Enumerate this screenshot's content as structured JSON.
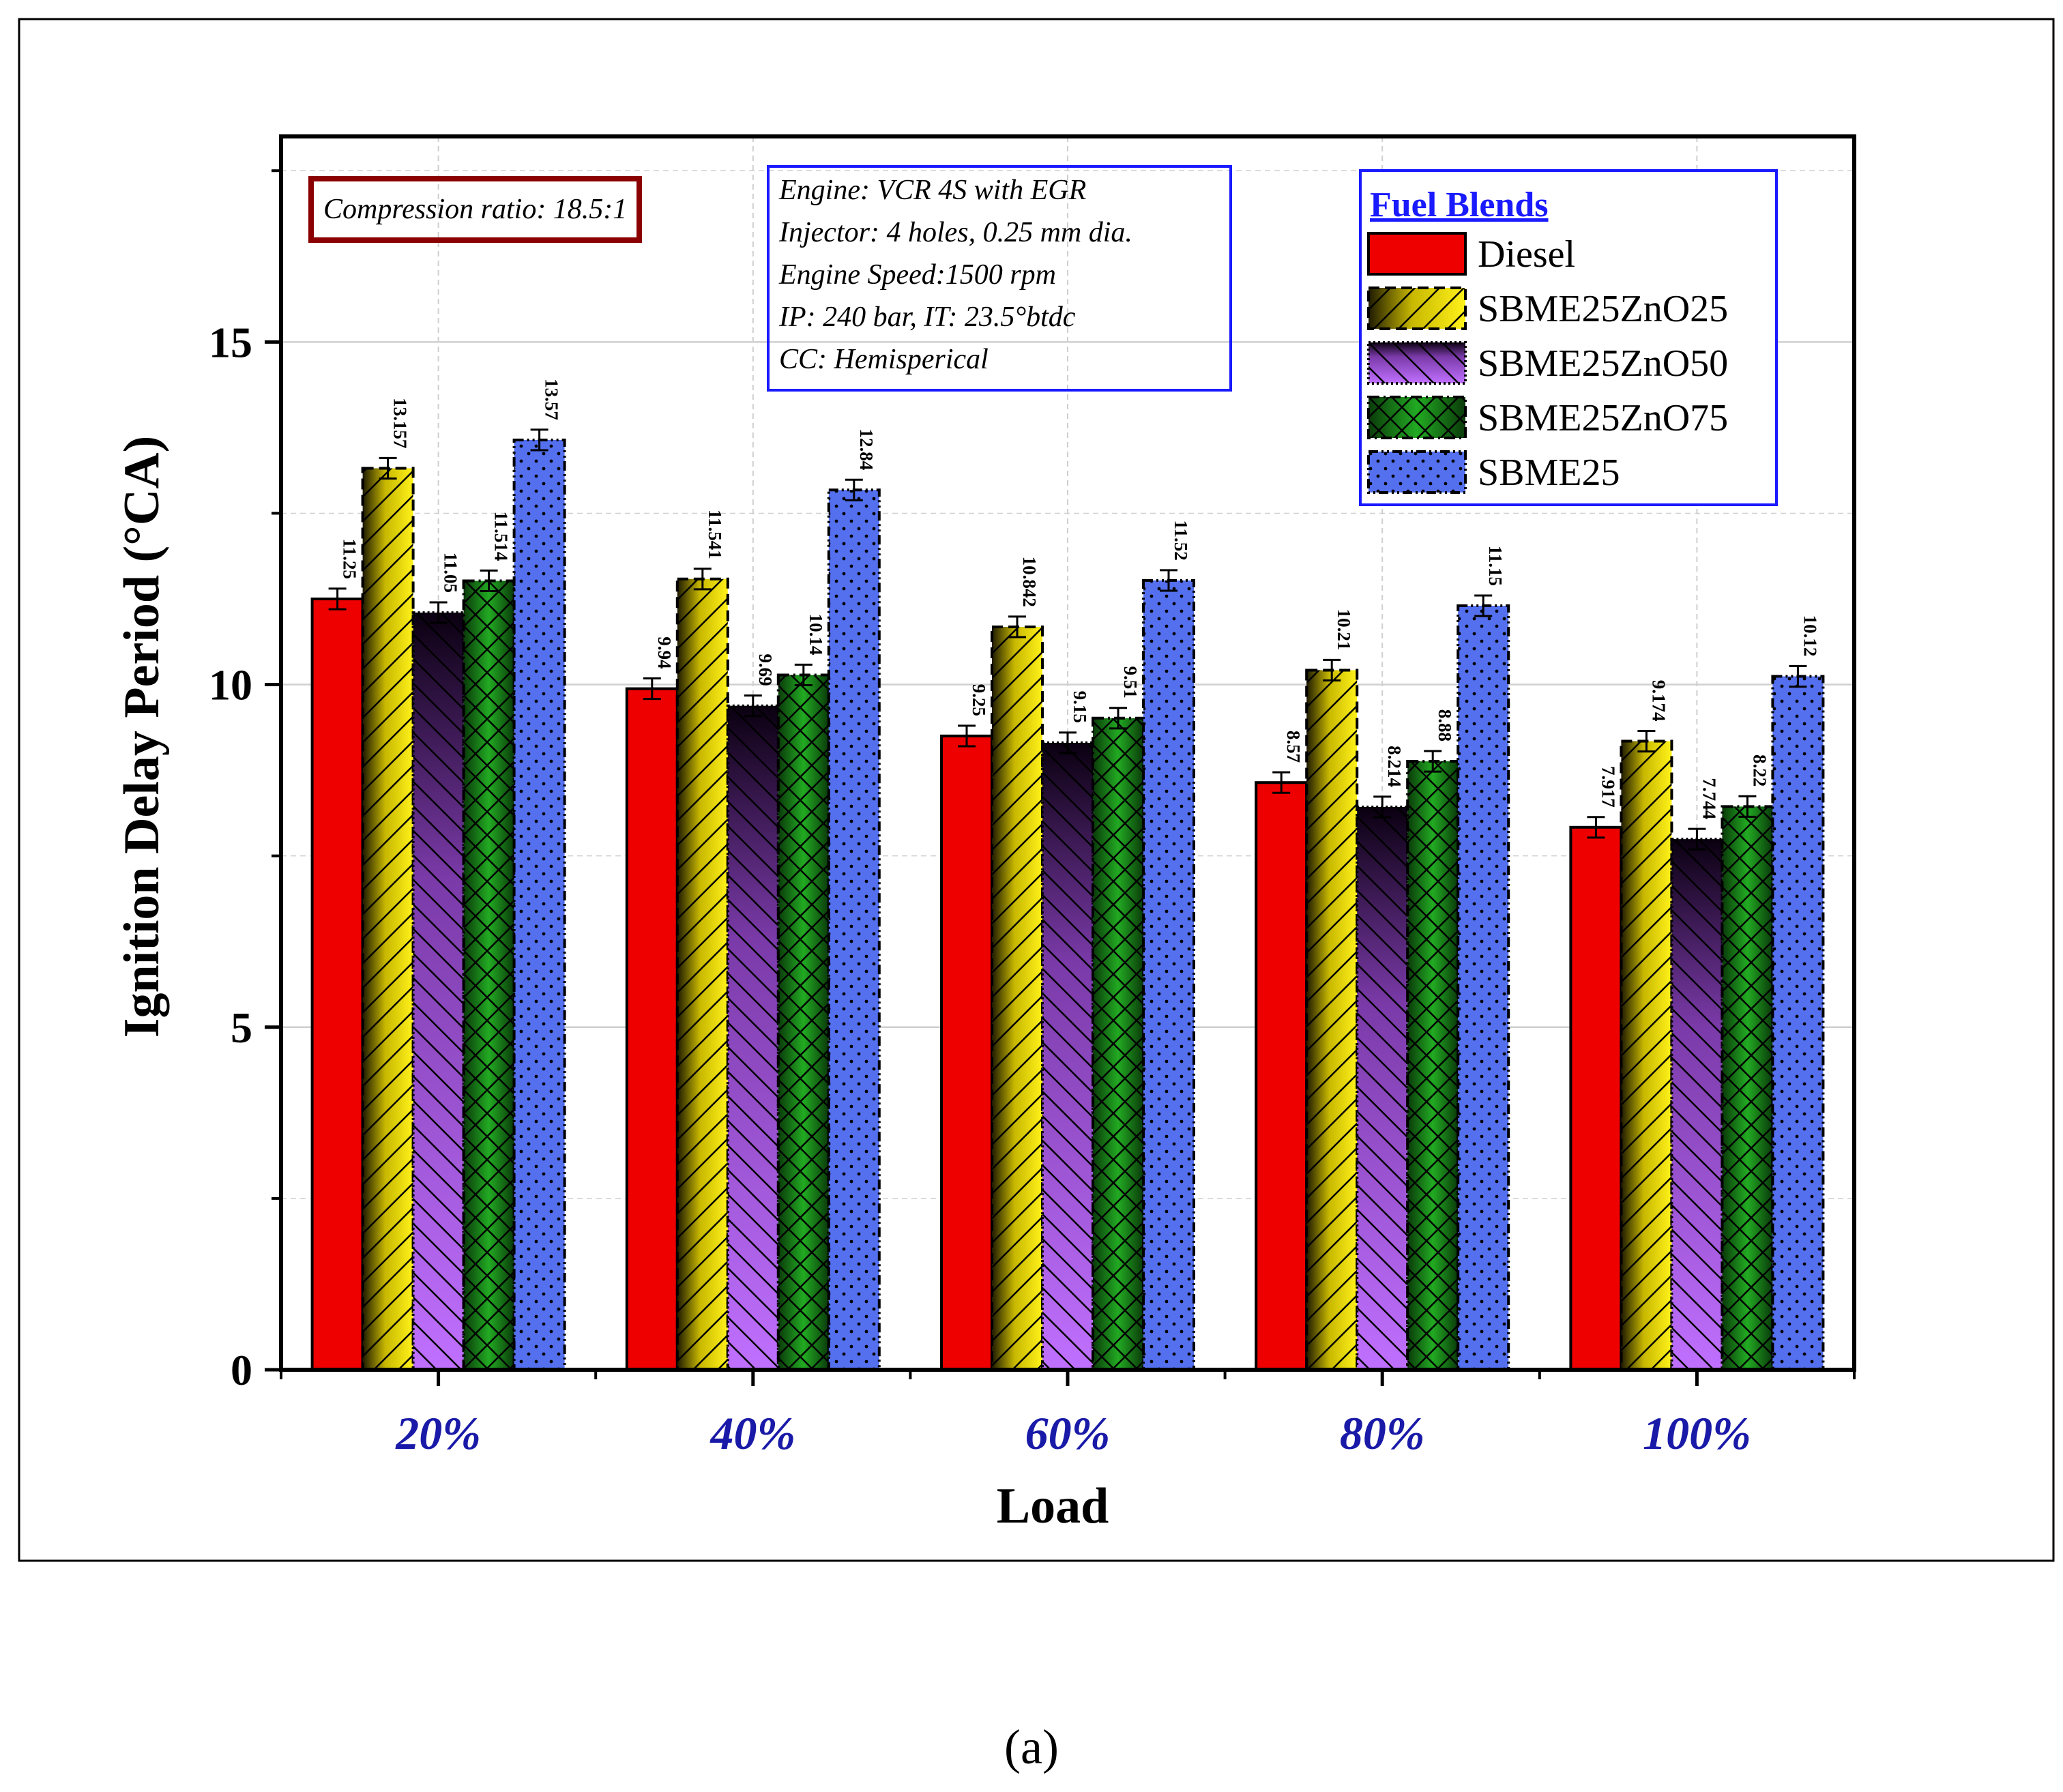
{
  "chart_data": {
    "type": "bar",
    "xlabel": "Load",
    "ylabel": "Ignition Delay Period (°CA)",
    "ylim": [
      0,
      18
    ],
    "yticks": [
      0,
      5,
      10,
      15
    ],
    "grid": true,
    "legend_position": "top-right",
    "legend_title": "Fuel Blends",
    "categories": [
      "20%",
      "40%",
      "60%",
      "80%",
      "100%"
    ],
    "series": [
      {
        "name": "Diesel",
        "values": [
          11.25,
          9.94,
          9.25,
          8.57,
          7.917
        ],
        "labels": [
          "11.25",
          "9.94",
          "9.25",
          "8.57",
          "7.917"
        ],
        "color": "#ee0000",
        "pattern": "solid"
      },
      {
        "name": "SBME25ZnO25",
        "values": [
          13.157,
          11.541,
          10.842,
          10.21,
          9.174
        ],
        "labels": [
          "13.157",
          "11.541",
          "10.842",
          "10.21",
          "9.174"
        ],
        "color": "#f0e000",
        "pattern": "diagonal"
      },
      {
        "name": "SBME25ZnO50",
        "values": [
          11.05,
          9.69,
          9.15,
          8.214,
          7.744
        ],
        "labels": [
          "11.05",
          "9.69",
          "9.15",
          "8.214",
          "7.744"
        ],
        "color": "#b060e8",
        "pattern": "backdiagonal"
      },
      {
        "name": "SBME25ZnO75",
        "values": [
          11.514,
          10.14,
          9.51,
          8.88,
          8.22
        ],
        "labels": [
          "11.514",
          "10.14",
          "9.51",
          "8.88",
          "8.22"
        ],
        "color": "#1fa01f",
        "pattern": "crosshatch"
      },
      {
        "name": "SBME25",
        "values": [
          13.57,
          12.84,
          11.52,
          11.15,
          10.12
        ],
        "labels": [
          "13.57",
          "12.84",
          "11.52",
          "11.15",
          "10.12"
        ],
        "color": "#5470ee",
        "pattern": "dots"
      }
    ],
    "error": 0.15
  },
  "annotations": {
    "compression_ratio": "Compression ratio: 18.5:1",
    "engine_lines": [
      "Engine: VCR 4S with EGR",
      "Injector: 4 holes, 0.25 mm dia.",
      "Engine Speed:1500 rpm",
      "IP: 240 bar, IT: 23.5°btdc",
      "CC: Hemisperical"
    ]
  },
  "caption": "(a)",
  "colors": {
    "tick_label": "#1a1aa8",
    "annotation_border": "#1a1aff",
    "cr_border": "#8b0000"
  }
}
